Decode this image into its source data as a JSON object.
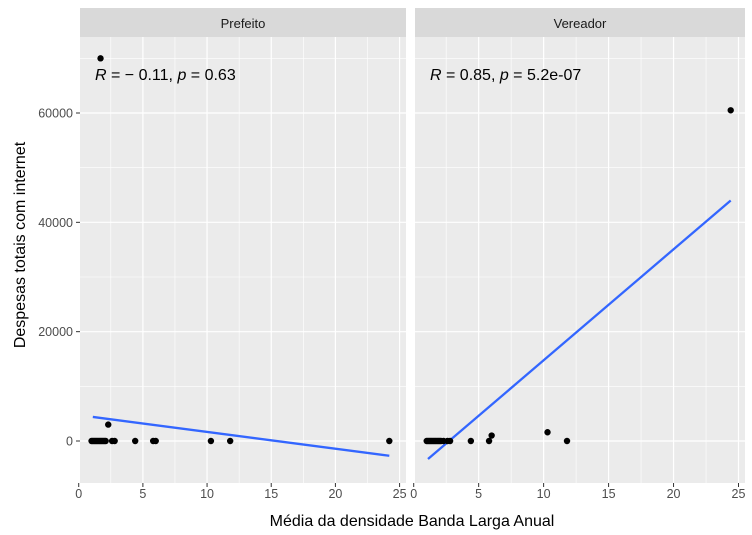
{
  "chart_data": {
    "type": "scatter",
    "xlabel": "Média da densidade Banda Larga Anual",
    "ylabel": "Despesas totais com internet",
    "xlim": [
      0,
      25
    ],
    "ylim": [
      0,
      70000
    ],
    "x_ticks": [
      0,
      5,
      10,
      15,
      20,
      25
    ],
    "y_ticks": [
      0,
      20000,
      40000,
      60000
    ],
    "grid": true,
    "colors": {
      "panel_bg": "#ebebeb",
      "strip_bg": "#d9d9d9",
      "grid": "#ffffff",
      "points": "#000000",
      "fit_line": "#3366ff"
    },
    "panels": [
      {
        "strip_label": "Prefeito",
        "stat": {
          "r_symbol": "R",
          "r_text": " = − 0.11, ",
          "p_symbol": "p",
          "p_text": " = 0.63"
        },
        "points": [
          {
            "x": 1.0,
            "y": 0
          },
          {
            "x": 1.1,
            "y": 0
          },
          {
            "x": 1.2,
            "y": 0
          },
          {
            "x": 1.3,
            "y": 0
          },
          {
            "x": 1.4,
            "y": 0
          },
          {
            "x": 1.5,
            "y": 0
          },
          {
            "x": 1.6,
            "y": 0
          },
          {
            "x": 1.7,
            "y": 0
          },
          {
            "x": 1.8,
            "y": 0
          },
          {
            "x": 1.9,
            "y": 0
          },
          {
            "x": 2.0,
            "y": 0
          },
          {
            "x": 2.1,
            "y": 0
          },
          {
            "x": 1.7,
            "y": 70000
          },
          {
            "x": 2.3,
            "y": 3000
          },
          {
            "x": 2.6,
            "y": 0
          },
          {
            "x": 2.8,
            "y": 0
          },
          {
            "x": 4.4,
            "y": 0
          },
          {
            "x": 5.8,
            "y": 0
          },
          {
            "x": 6.0,
            "y": 0
          },
          {
            "x": 10.3,
            "y": 0
          },
          {
            "x": 11.8,
            "y": 0
          },
          {
            "x": 24.2,
            "y": 0
          }
        ],
        "fit": {
          "x": [
            1.1,
            24.2
          ],
          "y": [
            4400,
            -2700
          ]
        }
      },
      {
        "strip_label": "Vereador",
        "stat": {
          "r_symbol": "R",
          "r_text": " = 0.85, ",
          "p_symbol": "p",
          "p_text": " = 5.2e-07"
        },
        "points": [
          {
            "x": 1.0,
            "y": 0
          },
          {
            "x": 1.1,
            "y": 0
          },
          {
            "x": 1.2,
            "y": 0
          },
          {
            "x": 1.3,
            "y": 0
          },
          {
            "x": 1.4,
            "y": 0
          },
          {
            "x": 1.5,
            "y": 0
          },
          {
            "x": 1.6,
            "y": 0
          },
          {
            "x": 1.7,
            "y": 0
          },
          {
            "x": 1.8,
            "y": 0
          },
          {
            "x": 1.9,
            "y": 0
          },
          {
            "x": 2.0,
            "y": 0
          },
          {
            "x": 2.1,
            "y": 0
          },
          {
            "x": 2.3,
            "y": 0
          },
          {
            "x": 2.6,
            "y": 0
          },
          {
            "x": 2.8,
            "y": 0
          },
          {
            "x": 4.4,
            "y": 0
          },
          {
            "x": 5.8,
            "y": 0
          },
          {
            "x": 6.0,
            "y": 1000
          },
          {
            "x": 10.3,
            "y": 1600
          },
          {
            "x": 11.8,
            "y": 0
          },
          {
            "x": 24.4,
            "y": 60500
          }
        ],
        "fit": {
          "x": [
            1.1,
            24.4
          ],
          "y": [
            -3300,
            44000
          ]
        }
      }
    ]
  }
}
